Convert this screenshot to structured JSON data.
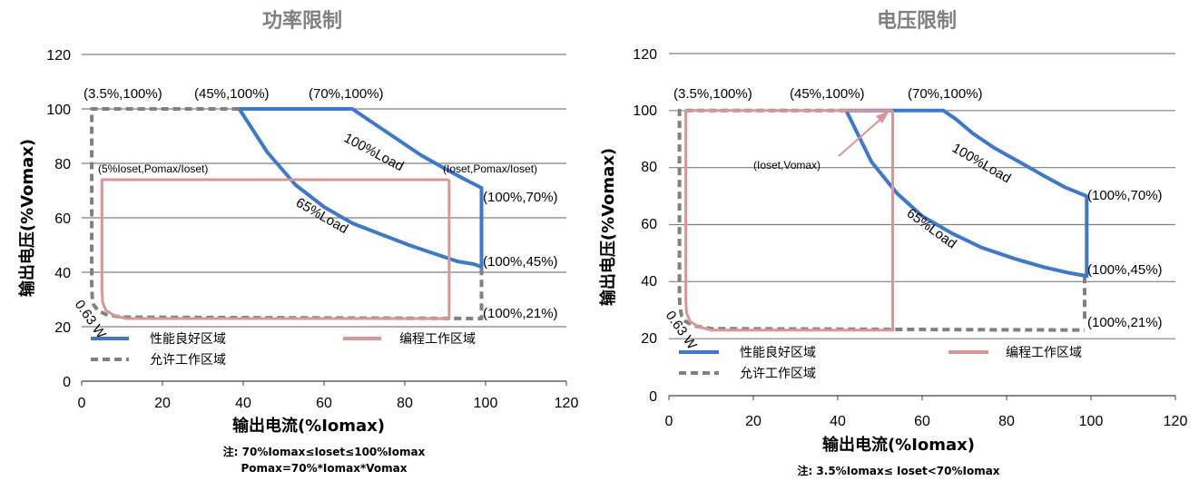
{
  "colors": {
    "good": "#3b78d0",
    "prog": "#d99694",
    "allow": "#808080",
    "grid": "#7f7f7f",
    "title": "#808080"
  },
  "legend": {
    "good": "性能良好区域",
    "prog": "编程工作区域",
    "allow": "允许工作区域"
  },
  "chart_data": [
    {
      "type": "line",
      "title": "功率限制",
      "xlabel": "输出电流(%Iomax)",
      "ylabel": "输出电压(%Vomax)",
      "xlim": [
        0,
        120
      ],
      "ylim": [
        0,
        120
      ],
      "xticks": [
        "0",
        "20",
        "40",
        "60",
        "80",
        "100",
        "120"
      ],
      "yticks": [
        "0",
        "20",
        "40",
        "60",
        "80",
        "100",
        "120"
      ],
      "grid": "horizontal",
      "legend_position": "bottom",
      "series": [
        {
          "name": "性能良好区域",
          "kind": "good",
          "x": [
            39,
            67,
            69,
            73,
            78,
            84,
            90,
            95,
            99,
            99,
            97,
            93,
            87,
            81,
            74,
            67,
            60,
            53,
            46,
            39
          ],
          "y": [
            100,
            100,
            98,
            94,
            89,
            83,
            78,
            74,
            71,
            42,
            43,
            44,
            47,
            50,
            54,
            58,
            64,
            72,
            84,
            100
          ]
        },
        {
          "name": "编程工作区域",
          "kind": "prog",
          "x": [
            91,
            5,
            5,
            5.2,
            6,
            8,
            11,
            91,
            91
          ],
          "y": [
            74,
            74,
            33,
            29,
            26,
            24.2,
            23,
            23,
            74
          ]
        },
        {
          "name": "允许工作区域",
          "kind": "allow",
          "x": [
            39,
            2.5,
            2.5,
            2.6,
            3,
            4,
            6,
            10,
            99,
            99
          ],
          "y": [
            100,
            100,
            35,
            31,
            28,
            26,
            24.5,
            23.5,
            23,
            42
          ]
        }
      ],
      "annotations": [
        "(3.5%,100%)",
        "(45%,100%)",
        "(70%,100%)",
        "100%Load",
        "(5%Ioset,Pomax/Ioset)",
        "(Ioset,Pomax/Ioset)",
        "(100%,70%)",
        "65%Load",
        "(100%,45%)",
        "(100%,21%)",
        "0.63 W"
      ],
      "notes": [
        "注: 70%Iomax≤Ioset≤100%Iomax",
        "Pomax=70%*Iomax*Vomax"
      ]
    },
    {
      "type": "line",
      "title": "电压限制",
      "xlabel": "输出电流(%Iomax)",
      "ylabel": "输出电压(%Vomax)",
      "xlim": [
        0,
        120
      ],
      "ylim": [
        0,
        120
      ],
      "xticks": [
        "0",
        "20",
        "40",
        "60",
        "80",
        "100",
        "120"
      ],
      "yticks": [
        "0",
        "20",
        "40",
        "60",
        "80",
        "100",
        "120"
      ],
      "grid": "horizontal",
      "legend_position": "bottom",
      "series": [
        {
          "name": "性能良好区域",
          "kind": "good",
          "x": [
            42,
            65,
            68,
            72,
            77,
            83,
            89,
            94,
            99,
            99,
            95,
            89,
            82,
            74,
            67,
            60,
            54,
            48,
            42
          ],
          "y": [
            100,
            100,
            97,
            92,
            87,
            82,
            77,
            73,
            70,
            42,
            43,
            45,
            48,
            52,
            57,
            63,
            71,
            82,
            100
          ]
        },
        {
          "name": "编程工作区域",
          "kind": "prog",
          "x": [
            53,
            4,
            4,
            4.2,
            5,
            7,
            10,
            53,
            53
          ],
          "y": [
            100,
            100,
            33,
            29,
            26,
            24.2,
            23,
            23,
            100
          ]
        },
        {
          "name": "允许工作区域",
          "kind": "allow",
          "x": [
            42,
            2.5,
            2.5,
            2.6,
            3,
            4,
            6,
            10,
            98.5
          ],
          "y": [
            100,
            100,
            35,
            31,
            28,
            26,
            24.5,
            23.5,
            23
          ]
        },
        {
          "name": "允许工作区域",
          "kind": "allow",
          "x": [
            98.5,
            98.5
          ],
          "y": [
            27,
            42
          ]
        }
      ],
      "annotations": [
        "(3.5%,100%)",
        "(45%,100%)",
        "(70%,100%)",
        "(Ioset,Vomax)",
        "100%Load",
        "(100%,70%)",
        "65%Load",
        "(100%,45%)",
        "(100%,21%)",
        "0.63 W"
      ],
      "notes": [
        "注: 3.5%Iomax≤ Ioset<70%Iomax"
      ]
    }
  ]
}
